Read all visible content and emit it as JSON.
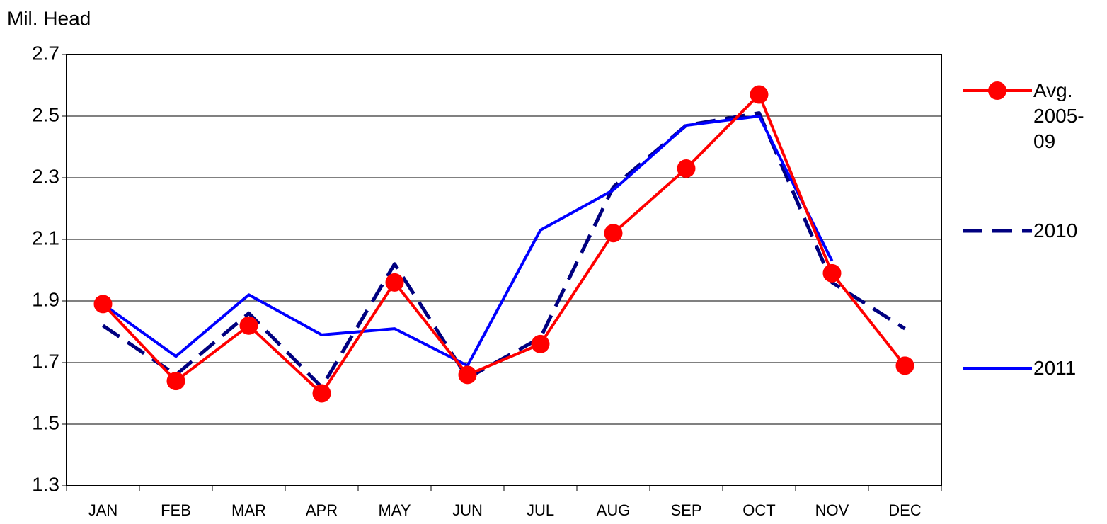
{
  "chart_data": {
    "type": "line",
    "y_label": "Mil. Head",
    "categories": [
      "JAN",
      "FEB",
      "MAR",
      "APR",
      "MAY",
      "JUN",
      "JUL",
      "AUG",
      "SEP",
      "OCT",
      "NOV",
      "DEC"
    ],
    "series": [
      {
        "name": "Avg. 2005-09",
        "color": "#ff0000",
        "dash": false,
        "marker": true,
        "values": [
          1.89,
          1.64,
          1.82,
          1.6,
          1.96,
          1.66,
          1.76,
          2.12,
          2.33,
          2.57,
          1.99,
          1.69
        ]
      },
      {
        "name": "2010",
        "color": "#000080",
        "dash": true,
        "marker": false,
        "values": [
          1.82,
          1.66,
          1.86,
          1.62,
          2.02,
          1.65,
          1.78,
          2.27,
          2.47,
          2.51,
          1.96,
          1.81
        ]
      },
      {
        "name": "2011",
        "color": "#0000ff",
        "dash": false,
        "marker": false,
        "values": [
          1.89,
          1.72,
          1.92,
          1.79,
          1.81,
          1.69,
          2.13,
          2.26,
          2.47,
          2.5,
          2.03,
          null
        ]
      }
    ],
    "ylim": [
      1.3,
      2.7
    ],
    "yticks": [
      1.3,
      1.5,
      1.7,
      1.9,
      2.1,
      2.3,
      2.5,
      2.7
    ],
    "grid": true
  }
}
